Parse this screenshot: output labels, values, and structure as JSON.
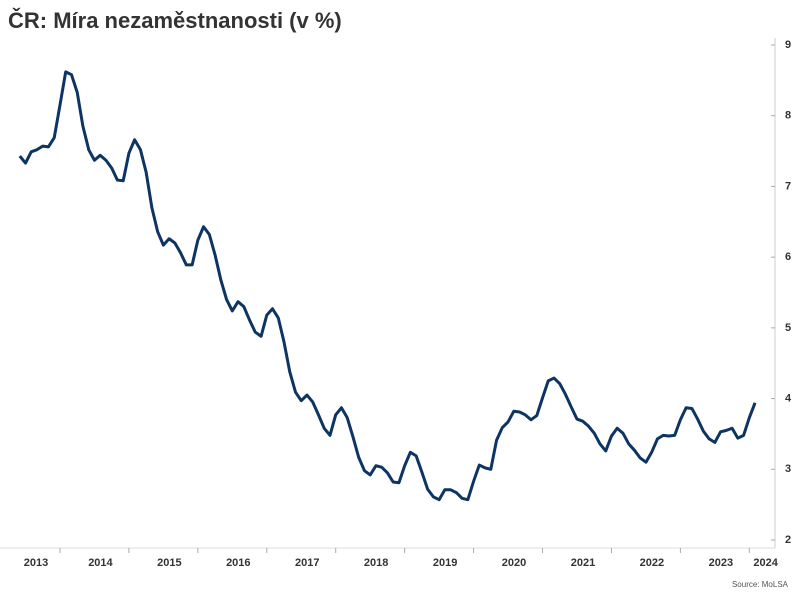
{
  "chart_data": {
    "type": "line",
    "title": "ČR: Míra nezaměstnanosti (v %)",
    "source": "Source: MoLSA",
    "x": [
      2013.417,
      2013.5,
      2013.583,
      2013.667,
      2013.75,
      2013.833,
      2013.917,
      2014,
      2014.083,
      2014.167,
      2014.25,
      2014.333,
      2014.417,
      2014.5,
      2014.583,
      2014.667,
      2014.75,
      2014.833,
      2014.917,
      2015,
      2015.083,
      2015.167,
      2015.25,
      2015.333,
      2015.417,
      2015.5,
      2015.583,
      2015.667,
      2015.75,
      2015.833,
      2015.917,
      2016,
      2016.083,
      2016.167,
      2016.25,
      2016.333,
      2016.417,
      2016.5,
      2016.583,
      2016.667,
      2016.75,
      2016.833,
      2016.917,
      2017,
      2017.083,
      2017.167,
      2017.25,
      2017.333,
      2017.417,
      2017.5,
      2017.583,
      2017.667,
      2017.75,
      2017.833,
      2017.917,
      2018,
      2018.083,
      2018.167,
      2018.25,
      2018.333,
      2018.417,
      2018.5,
      2018.583,
      2018.667,
      2018.75,
      2018.833,
      2018.917,
      2019,
      2019.083,
      2019.167,
      2019.25,
      2019.333,
      2019.417,
      2019.5,
      2019.583,
      2019.667,
      2019.75,
      2019.833,
      2019.917,
      2020,
      2020.083,
      2020.167,
      2020.25,
      2020.333,
      2020.417,
      2020.5,
      2020.583,
      2020.667,
      2020.75,
      2020.833,
      2020.917,
      2021,
      2021.083,
      2021.167,
      2021.25,
      2021.333,
      2021.417,
      2021.5,
      2021.583,
      2021.667,
      2021.75,
      2021.833,
      2021.917,
      2022,
      2022.083,
      2022.167,
      2022.25,
      2022.333,
      2022.417,
      2022.5,
      2022.583,
      2022.667,
      2022.75,
      2022.833,
      2022.917,
      2023,
      2023.083,
      2023.167,
      2023.25,
      2023.333,
      2023.417,
      2023.5,
      2023.583,
      2023.667,
      2023.75,
      2023.833,
      2023.917,
      2024,
      2024.083
    ],
    "series": [
      {
        "color": "#0d3463",
        "values": [
          7.43,
          7.33,
          7.49,
          7.52,
          7.57,
          7.56,
          7.69,
          8.15,
          8.62,
          8.58,
          8.33,
          7.85,
          7.52,
          7.37,
          7.44,
          7.37,
          7.26,
          7.09,
          7.08,
          7.47,
          7.66,
          7.52,
          7.2,
          6.7,
          6.36,
          6.17,
          6.26,
          6.2,
          6.06,
          5.89,
          5.89,
          6.24,
          6.43,
          6.32,
          6.03,
          5.68,
          5.4,
          5.24,
          5.37,
          5.3,
          5.11,
          4.94,
          4.88,
          5.18,
          5.27,
          5.14,
          4.8,
          4.38,
          4.09,
          3.97,
          4.05,
          3.95,
          3.77,
          3.58,
          3.48,
          3.77,
          3.87,
          3.73,
          3.46,
          3.17,
          2.98,
          2.92,
          3.05,
          3.03,
          2.95,
          2.82,
          2.81,
          3.05,
          3.24,
          3.19,
          2.96,
          2.72,
          2.61,
          2.57,
          2.71,
          2.71,
          2.67,
          2.59,
          2.57,
          2.83,
          3.06,
          3.02,
          3.0,
          3.41,
          3.59,
          3.67,
          3.82,
          3.81,
          3.77,
          3.7,
          3.76,
          4.01,
          4.25,
          4.29,
          4.21,
          4.06,
          3.88,
          3.71,
          3.68,
          3.61,
          3.51,
          3.36,
          3.26,
          3.47,
          3.58,
          3.51,
          3.36,
          3.27,
          3.16,
          3.1,
          3.24,
          3.43,
          3.48,
          3.47,
          3.48,
          3.7,
          3.87,
          3.86,
          3.71,
          3.54,
          3.43,
          3.38,
          3.53,
          3.55,
          3.58,
          3.44,
          3.48,
          3.73,
          3.94
        ]
      }
    ],
    "xlim": [
      2013.13,
      2024.3
    ],
    "xticks": [
      2013,
      2014,
      2015,
      2016,
      2017,
      2018,
      2019,
      2020,
      2021,
      2022,
      2023,
      2024
    ],
    "ylim": [
      2,
      9
    ],
    "yticks": [
      2,
      3,
      4,
      5,
      6,
      7,
      8,
      9
    ],
    "y_axis_side": "right"
  }
}
